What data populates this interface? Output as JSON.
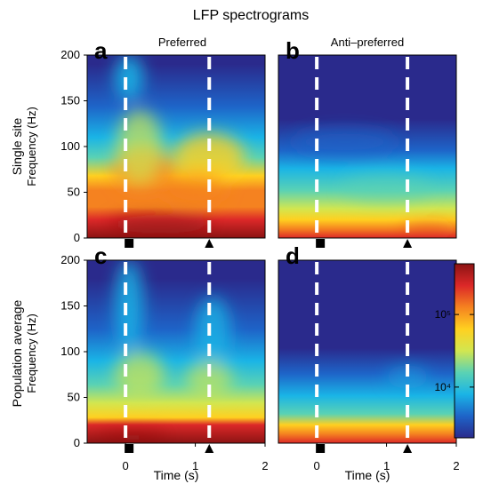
{
  "chart_data": {
    "type": "heatmap",
    "title": "LFP spectrograms",
    "column_labels": [
      "Preferred",
      "Anti–preferred"
    ],
    "row_labels": [
      {
        "line1": "Single site",
        "line2": "Frequency (Hz)"
      },
      {
        "line1": "Population average",
        "line2": "Frequency (Hz)"
      }
    ],
    "xlabel": "Time (s)",
    "xlim": [
      -0.55,
      2.0
    ],
    "ylim": [
      0,
      200
    ],
    "x_ticks": [
      "0",
      "1",
      "2"
    ],
    "x_tick_values": [
      0,
      1,
      2
    ],
    "y_ticks": [
      "0",
      "50",
      "100",
      "150",
      "200"
    ],
    "y_tick_values": [
      0,
      50,
      100,
      150,
      200
    ],
    "colorbar": {
      "scale": "log",
      "range": [
        2000,
        500000
      ],
      "tick_labels": [
        "10⁵",
        "10⁴"
      ],
      "tick_values": [
        100000,
        10000
      ],
      "colors": [
        "#2a2a8c",
        "#1e64c8",
        "#1ab4e6",
        "#5ad2b4",
        "#d2e650",
        "#ffd020",
        "#f58220",
        "#dc2828",
        "#8c1414"
      ]
    },
    "panels": [
      {
        "letter": "a",
        "row": 0,
        "col": 0,
        "cue_time": 0.0,
        "second_time": 1.2,
        "cue_marker": "square",
        "second_marker": "triangle",
        "description": "single site, preferred: strong broadband response after cue and after second event"
      },
      {
        "letter": "b",
        "row": 0,
        "col": 1,
        "cue_time": 0.0,
        "second_time": 1.3,
        "cue_marker": "square",
        "second_marker": "triangle",
        "description": "single site, anti-preferred: weak response"
      },
      {
        "letter": "c",
        "row": 1,
        "col": 0,
        "cue_time": 0.0,
        "second_time": 1.2,
        "cue_marker": "square",
        "second_marker": "triangle",
        "description": "population average, preferred"
      },
      {
        "letter": "d",
        "row": 1,
        "col": 1,
        "cue_time": 0.0,
        "second_time": 1.3,
        "cue_marker": "square",
        "second_marker": "triangle",
        "description": "population average, anti-preferred"
      }
    ]
  }
}
